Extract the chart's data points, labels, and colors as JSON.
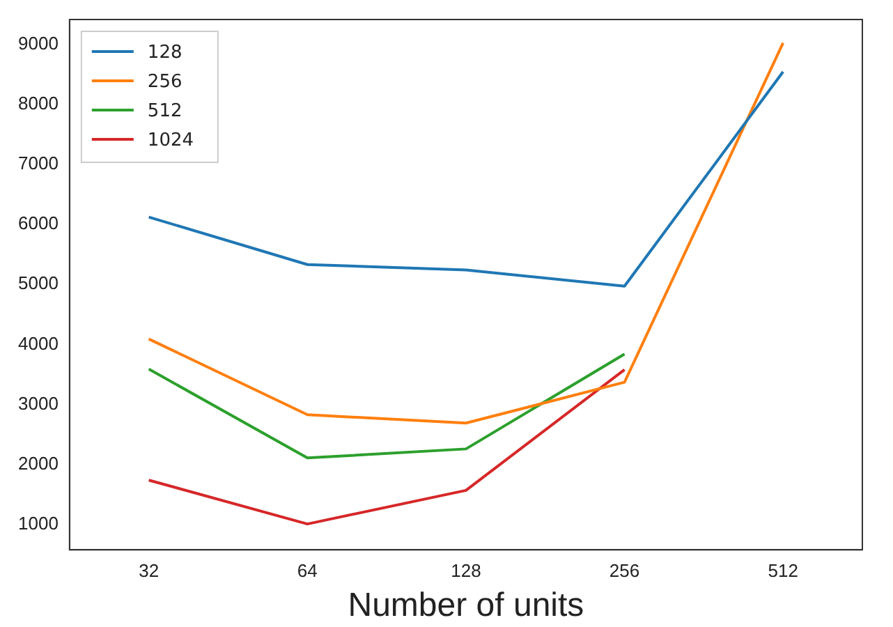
{
  "chart_data": {
    "type": "line",
    "xlabel": "Number of units",
    "categories": [
      "32",
      "64",
      "128",
      "256",
      "512"
    ],
    "series": [
      {
        "name": "128",
        "color": "#1f77b4",
        "values": [
          6120,
          5330,
          5240,
          4970,
          8540
        ]
      },
      {
        "name": "256",
        "color": "#ff7f0e",
        "values": [
          4090,
          2830,
          2690,
          3370,
          9020
        ]
      },
      {
        "name": "512",
        "color": "#2ca02c",
        "values": [
          3590,
          2110,
          2260,
          3840,
          null
        ]
      },
      {
        "name": "1024",
        "color": "#d62728",
        "values": [
          1740,
          1010,
          1570,
          3580,
          null
        ]
      }
    ],
    "ylim": [
      580,
      9410
    ],
    "yticks": [
      1000,
      2000,
      3000,
      4000,
      5000,
      6000,
      7000,
      8000,
      9000
    ],
    "grid": false,
    "legend": "top left",
    "marker": "none",
    "line_style": "solid"
  }
}
